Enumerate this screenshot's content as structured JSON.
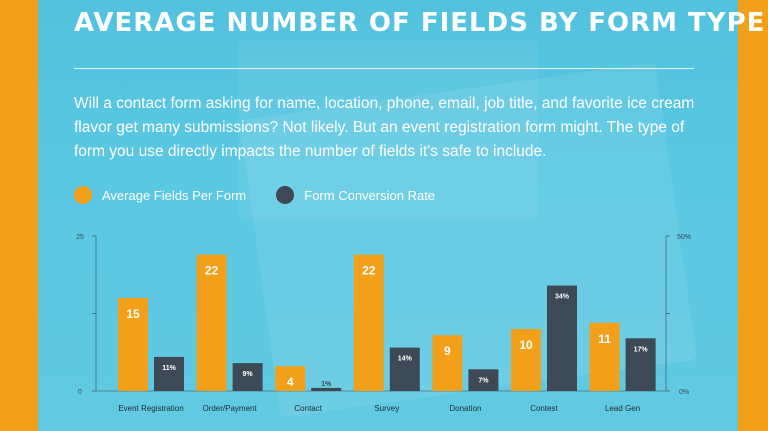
{
  "title": "AVERAGE NUMBER OF FIELDS BY FORM TYPE",
  "intro": "Will a contact form asking for name, location, phone, email, job title, and favorite ice cream flavor get many submissions? Not likely. But an event registration form might. The type of form you use directly impacts the number of fields it's safe to include.",
  "colors": {
    "fields": "#f2a01a",
    "conversion": "#3d4a56",
    "background": "#5bc8e3",
    "frame": "#f2a01a"
  },
  "chart_data": {
    "type": "bar",
    "title": "",
    "categories": [
      "Event Registration",
      "Order/Payment",
      "Contact",
      "Survey",
      "Donation",
      "Contest",
      "Lead Gen"
    ],
    "series": [
      {
        "name": "Average Fields Per Form",
        "axis": "left",
        "values": [
          15,
          22,
          4,
          22,
          9,
          10,
          11
        ],
        "labels": [
          "15",
          "22",
          "4",
          "22",
          "9",
          "10",
          "11"
        ]
      },
      {
        "name": "Form Conversion Rate",
        "axis": "right",
        "values": [
          11,
          9,
          1,
          14,
          7,
          34,
          17
        ],
        "labels": [
          "11%",
          "9%",
          "1%",
          "14%",
          "7%",
          "34%",
          "17%"
        ]
      }
    ],
    "left_axis": {
      "ylim": [
        0,
        25
      ],
      "tick_labels": [
        "0",
        "25"
      ],
      "ticks": [
        0,
        25
      ]
    },
    "right_axis": {
      "ylim": [
        0,
        50
      ],
      "tick_labels": [
        "0%",
        "50%"
      ],
      "ticks": [
        0,
        50
      ]
    },
    "legend_position": "top-left",
    "grid": false
  }
}
